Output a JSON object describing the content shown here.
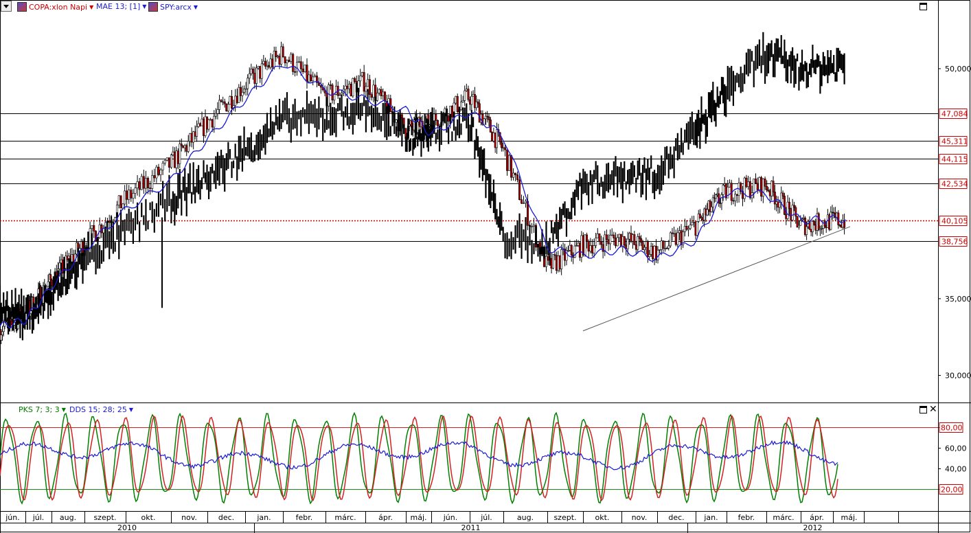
{
  "legend": {
    "main": [
      {
        "label": "COPA:xlon Napi",
        "color": "#cc0000",
        "icon": "copa-chart-icon"
      },
      {
        "label": "MAE 13; [1]",
        "color": "#1a1ad6",
        "icon": ""
      },
      {
        "label": "SPY:arcx",
        "color": "#1a1ad6",
        "icon": "spy-chart-icon"
      }
    ],
    "indicator": [
      {
        "label": "PKS 7; 3; 3",
        "color": "#007700"
      },
      {
        "label": "DDS 15; 28; 25",
        "color": "#1a1ad6"
      }
    ]
  },
  "colors": {
    "price_bar": "#000000",
    "ma_line": "#1a1ad6",
    "level_line": "#000000",
    "current_line": "#cc0000",
    "label_text": "#cc0000",
    "stoch_k": "#008000",
    "stoch_d": "#d42020",
    "stoch_dds": "#1a1ad6",
    "trendline": "#555555"
  },
  "chart_data": [
    {
      "type": "line",
      "title": "",
      "series": [
        {
          "name": "COPA:xlon Napi",
          "kind": "candlestick",
          "x": [
            "2010-06",
            "2010-07",
            "2010-08",
            "2010-09",
            "2010-10",
            "2010-11",
            "2010-12",
            "2011-01",
            "2011-02",
            "2011-03",
            "2011-04",
            "2011-05",
            "2011-06",
            "2011-07",
            "2011-08",
            "2011-09",
            "2011-10",
            "2011-11",
            "2011-12",
            "2012-01",
            "2012-02",
            "2012-03",
            "2012-04",
            "2012-05"
          ],
          "values": [
            33000,
            34000,
            36200,
            38600,
            41500,
            43800,
            46500,
            49000,
            51000,
            48200,
            49200,
            46000,
            46500,
            48200,
            44700,
            37000,
            38500,
            39000,
            38000,
            39800,
            42000,
            42400,
            39800,
            40100
          ]
        },
        {
          "name": "MAE 13; [1]",
          "x": [
            "2010-06",
            "2010-07",
            "2010-08",
            "2010-09",
            "2010-10",
            "2010-11",
            "2010-12",
            "2011-01",
            "2011-02",
            "2011-03",
            "2011-04",
            "2011-05",
            "2011-06",
            "2011-07",
            "2011-08",
            "2011-09",
            "2011-10",
            "2011-11",
            "2011-12",
            "2012-01",
            "2012-02",
            "2012-03",
            "2012-04",
            "2012-05"
          ],
          "values": [
            33200,
            33600,
            35800,
            38200,
            40800,
            42700,
            45400,
            48000,
            50400,
            48600,
            48000,
            47300,
            45700,
            47200,
            45600,
            38300,
            37800,
            38200,
            37600,
            38800,
            42000,
            41800,
            40100,
            40200
          ]
        },
        {
          "name": "SPY:arcx",
          "kind": "bars",
          "x": [
            "2010-06",
            "2010-07",
            "2010-08",
            "2010-09",
            "2010-10",
            "2010-11",
            "2010-12",
            "2011-01",
            "2011-02",
            "2011-03",
            "2011-04",
            "2011-05",
            "2011-06",
            "2011-07",
            "2011-08",
            "2011-09",
            "2011-10",
            "2011-11",
            "2011-12",
            "2012-01",
            "2012-02",
            "2012-03",
            "2012-04",
            "2012-05"
          ],
          "values": [
            34600,
            33800,
            35200,
            37600,
            39400,
            41400,
            42900,
            44600,
            46700,
            46800,
            47500,
            45500,
            45900,
            46600,
            39000,
            38500,
            42500,
            43000,
            43200,
            45900,
            48600,
            50900,
            50000,
            50200
          ]
        }
      ],
      "x_tick_labels": [
        "jún.",
        "júl.",
        "aug.",
        "szept.",
        "okt.",
        "nov.",
        "dec.",
        "jan.",
        "febr.",
        "márc.",
        "ápr.",
        "máj.",
        "jún.",
        "júl.",
        "aug.",
        "szept.",
        "okt.",
        "nov.",
        "dec.",
        "jan.",
        "febr.",
        "márc.",
        "ápr.",
        "máj."
      ],
      "year_labels": [
        "2010",
        "2011",
        "2012"
      ],
      "y_tick_labels": [
        "30,000",
        "35,000",
        "50,000"
      ],
      "level_labels": [
        "47,084",
        "45,311",
        "44,115",
        "42,534",
        "40,105",
        "38,756"
      ],
      "levels": [
        47084,
        45311,
        44115,
        42534,
        40105,
        38756
      ],
      "current_price": 40105,
      "trendline": {
        "from": [
          "2011-10",
          32900
        ],
        "to": [
          "2012-05",
          39700
        ]
      },
      "ylim": [
        28000,
        54000
      ],
      "grid": false,
      "legend": "top-left"
    },
    {
      "type": "line",
      "title": "",
      "series": [
        {
          "name": "PKS 7; 3; 3",
          "kind": "stochastic_k"
        },
        {
          "name": "DDS 15; 28; 25",
          "kind": "slow"
        }
      ],
      "y_tick_labels": [
        "20,00",
        "40,00",
        "60,00",
        "80,00"
      ],
      "bands": [
        20,
        80
      ],
      "ylim": [
        0,
        100
      ],
      "legend": "top-left"
    }
  ]
}
